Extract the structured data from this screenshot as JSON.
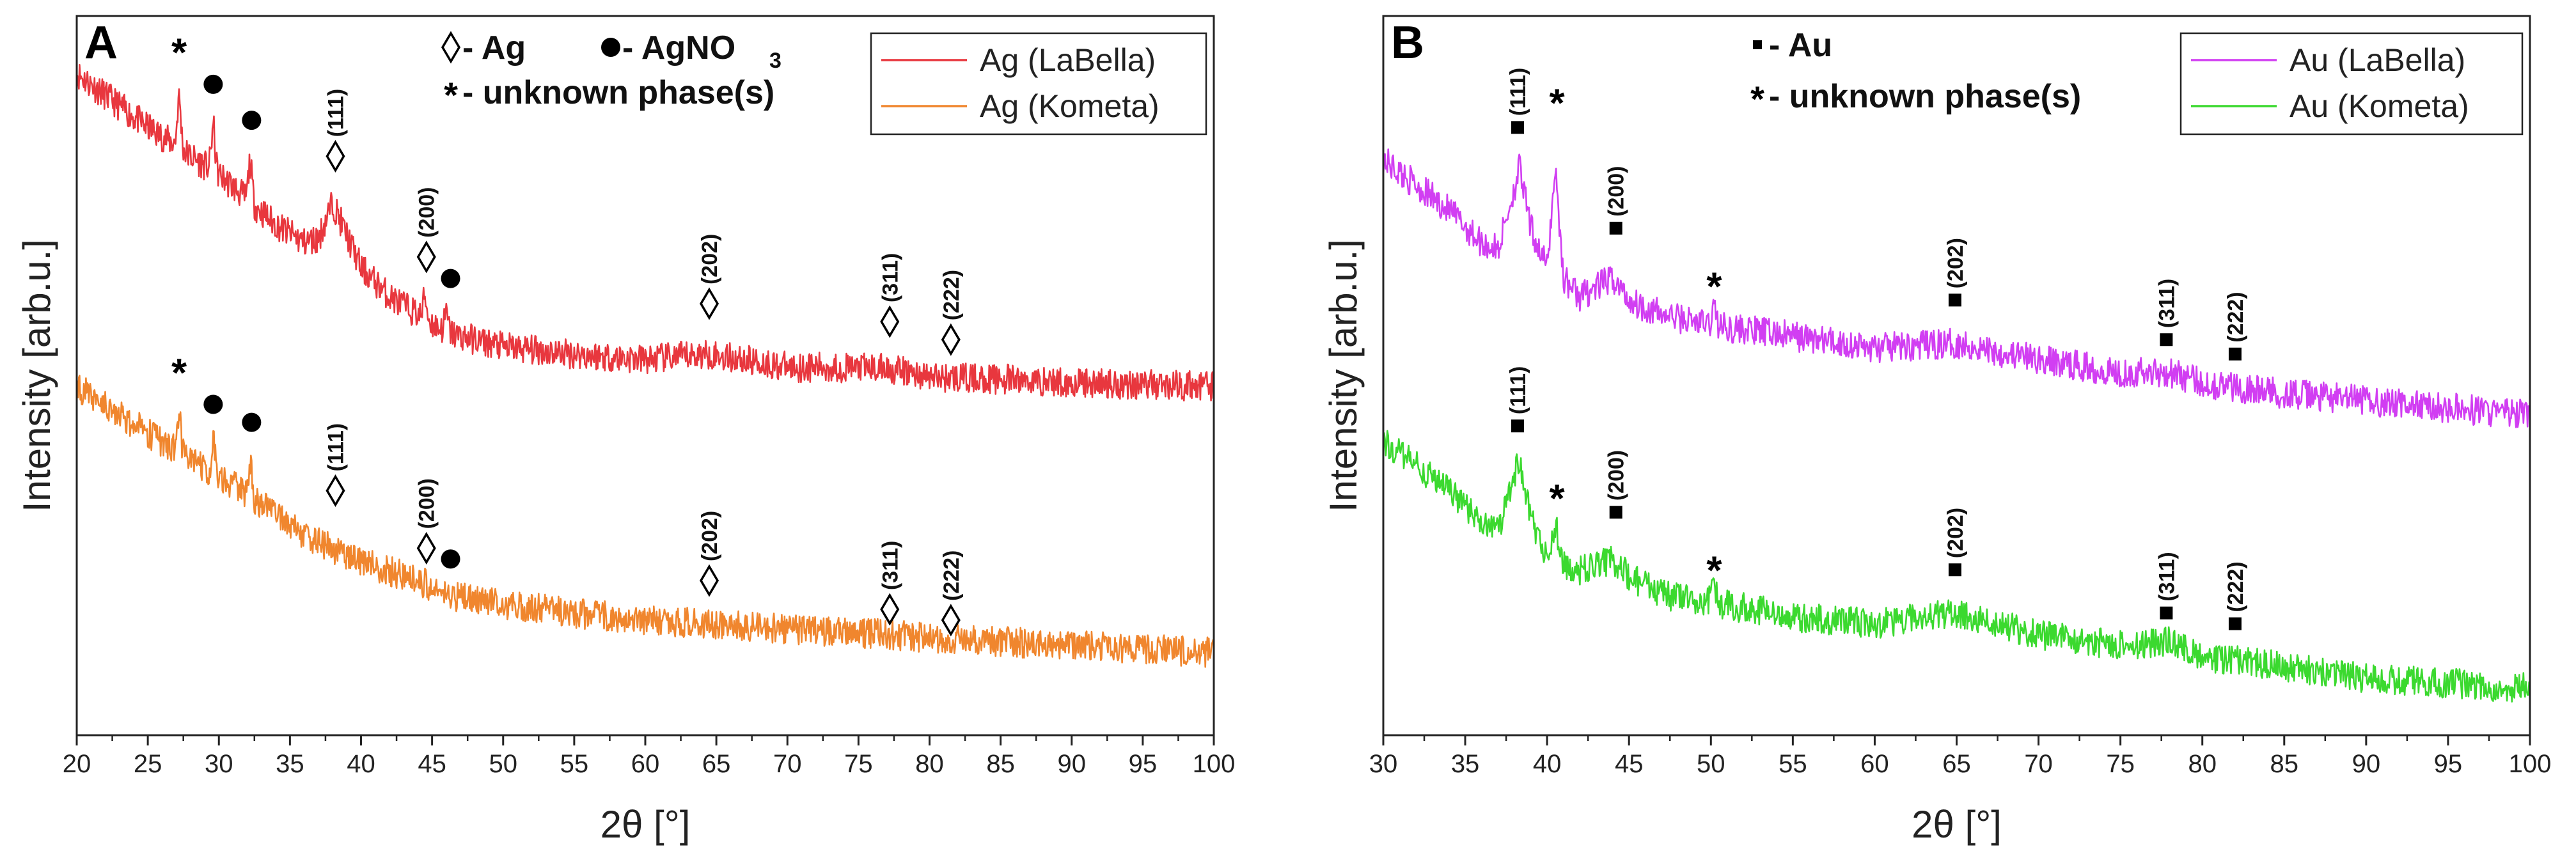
{
  "chart_data": [
    {
      "type": "line",
      "panel_letter": "A",
      "xlabel": "2θ [°]",
      "ylabel": "Intensity [arb.u.]",
      "xlim": [
        20,
        100
      ],
      "xticks": [
        20,
        25,
        30,
        35,
        40,
        45,
        50,
        55,
        60,
        65,
        70,
        75,
        80,
        85,
        90,
        95,
        100
      ],
      "ylim": [
        0,
        10
      ],
      "grid": false,
      "legend_position": "top-right",
      "series": [
        {
          "name": "Ag (LaBella)",
          "color": "#e8373e",
          "x": [
            20,
            22,
            25,
            27,
            28,
            30,
            32,
            34,
            36,
            37,
            38,
            39,
            40,
            42,
            44,
            46,
            50,
            55,
            60,
            64.5,
            70,
            77,
            80,
            85,
            90,
            95,
            100
          ],
          "y": [
            9.2,
            8.9,
            8.45,
            8.2,
            8.05,
            7.8,
            7.45,
            7.1,
            6.85,
            6.9,
            7.4,
            6.95,
            6.5,
            6.1,
            5.85,
            5.6,
            5.4,
            5.3,
            5.22,
            5.3,
            5.12,
            5.1,
            4.98,
            4.95,
            4.9,
            4.88,
            4.85
          ],
          "peaks": [
            {
              "x": 27.2,
              "y": 8.85
            },
            {
              "x": 29.6,
              "y": 8.45
            },
            {
              "x": 32.2,
              "y": 7.95
            },
            {
              "x": 44.5,
              "y": 6.1
            },
            {
              "x": 46.0,
              "y": 5.85
            }
          ]
        },
        {
          "name": "Ag (Kometa)",
          "color": "#f0862e",
          "x": [
            20,
            22,
            25,
            27,
            28,
            30,
            32,
            34,
            36,
            38,
            39,
            40,
            42,
            44,
            46,
            50,
            55,
            60,
            64.5,
            70,
            77,
            80,
            85,
            90,
            95,
            100
          ],
          "y": [
            4.85,
            4.6,
            4.2,
            3.95,
            3.8,
            3.6,
            3.35,
            3.05,
            2.8,
            2.6,
            2.5,
            2.42,
            2.28,
            2.16,
            1.95,
            1.82,
            1.7,
            1.6,
            1.55,
            1.48,
            1.4,
            1.35,
            1.3,
            1.25,
            1.2,
            1.15
          ],
          "peaks": [
            {
              "x": 27.2,
              "y": 4.45
            },
            {
              "x": 29.6,
              "y": 4.1
            },
            {
              "x": 32.2,
              "y": 3.75
            }
          ]
        }
      ],
      "markers": [
        {
          "symbol": "star",
          "x": 27.2,
          "y": 9.55
        },
        {
          "symbol": "circle",
          "x": 29.6,
          "y": 9.05
        },
        {
          "symbol": "circle",
          "x": 32.3,
          "y": 8.55
        },
        {
          "symbol": "diamond",
          "x": 38.2,
          "y": 8.05,
          "label": "(111)"
        },
        {
          "symbol": "diamond",
          "x": 44.6,
          "y": 6.65,
          "label": "(200)"
        },
        {
          "symbol": "circle",
          "x": 46.3,
          "y": 6.35
        },
        {
          "symbol": "diamond",
          "x": 64.5,
          "y": 6.0,
          "label": "(202)"
        },
        {
          "symbol": "diamond",
          "x": 77.2,
          "y": 5.75,
          "label": "(311)"
        },
        {
          "symbol": "diamond",
          "x": 81.5,
          "y": 5.5,
          "label": "(222)"
        },
        {
          "symbol": "star",
          "x": 27.2,
          "y": 5.1
        },
        {
          "symbol": "circle",
          "x": 29.6,
          "y": 4.6
        },
        {
          "symbol": "circle",
          "x": 32.3,
          "y": 4.35
        },
        {
          "symbol": "diamond",
          "x": 38.2,
          "y": 3.4,
          "label": "(111)"
        },
        {
          "symbol": "diamond",
          "x": 44.6,
          "y": 2.6,
          "label": "(200)"
        },
        {
          "symbol": "circle",
          "x": 46.3,
          "y": 2.45
        },
        {
          "symbol": "diamond",
          "x": 64.5,
          "y": 2.15,
          "label": "(202)"
        },
        {
          "symbol": "diamond",
          "x": 77.2,
          "y": 1.75,
          "label": "(311)"
        },
        {
          "symbol": "diamond",
          "x": 81.5,
          "y": 1.6,
          "label": "(222)"
        }
      ],
      "key": [
        {
          "symbol": "diamond",
          "text": " - Ag"
        },
        {
          "symbol": "circle",
          "text": " - AgNO",
          "subscript": "3"
        },
        {
          "symbol": "star",
          "text": " - unknown phase(s)"
        }
      ]
    },
    {
      "type": "line",
      "panel_letter": "B",
      "xlabel": "2θ [°]",
      "ylabel": "Intensity [arb.u.]",
      "xlim": [
        30,
        100
      ],
      "xticks": [
        30,
        35,
        40,
        45,
        50,
        55,
        60,
        65,
        70,
        75,
        80,
        85,
        90,
        95,
        100
      ],
      "ylim": [
        0,
        10
      ],
      "grid": false,
      "legend_position": "top-right",
      "series": [
        {
          "name": "Au (LaBella)",
          "color": "#d13ef2",
          "x": [
            30,
            32,
            34,
            36,
            37,
            38,
            38.3,
            39,
            40,
            40.5,
            41,
            42,
            44,
            45,
            47,
            50,
            55,
            60,
            65,
            70,
            75,
            78,
            80,
            85,
            90,
            95,
            100
          ],
          "y": [
            8.0,
            7.65,
            7.3,
            6.85,
            6.75,
            7.6,
            7.9,
            7.05,
            6.5,
            7.9,
            6.35,
            6.1,
            6.35,
            6.05,
            5.85,
            5.7,
            5.55,
            5.38,
            5.45,
            5.22,
            5.05,
            5.05,
            4.9,
            4.75,
            4.65,
            4.55,
            4.45
          ],
          "peaks": [
            {
              "x": 50.2,
              "y": 5.95
            }
          ]
        },
        {
          "name": "Au (Kometa)",
          "color": "#3bd92f",
          "x": [
            30,
            32,
            34,
            36,
            37,
            38,
            38.3,
            39,
            40,
            40.5,
            41,
            42,
            44,
            45,
            47,
            50,
            55,
            60,
            65,
            70,
            75,
            78,
            80,
            85,
            90,
            95,
            100
          ],
          "y": [
            4.1,
            3.75,
            3.4,
            2.95,
            2.85,
            3.6,
            3.8,
            3.0,
            2.45,
            2.95,
            2.35,
            2.3,
            2.45,
            2.2,
            1.95,
            1.85,
            1.65,
            1.55,
            1.7,
            1.4,
            1.25,
            1.3,
            1.1,
            0.95,
            0.8,
            0.72,
            0.65
          ],
          "peaks": [
            {
              "x": 50.2,
              "y": 2.05
            }
          ]
        }
      ],
      "markers": [
        {
          "symbol": "square",
          "x": 38.2,
          "y": 8.45,
          "label": "(111)"
        },
        {
          "symbol": "star",
          "x": 40.6,
          "y": 8.85
        },
        {
          "symbol": "square",
          "x": 44.2,
          "y": 7.05,
          "label": "(200)"
        },
        {
          "symbol": "star",
          "x": 50.2,
          "y": 6.3
        },
        {
          "symbol": "square",
          "x": 64.9,
          "y": 6.05,
          "label": "(202)"
        },
        {
          "symbol": "square",
          "x": 77.8,
          "y": 5.5,
          "label": "(311)"
        },
        {
          "symbol": "square",
          "x": 82.0,
          "y": 5.3,
          "label": "(222)"
        },
        {
          "symbol": "square",
          "x": 38.2,
          "y": 4.3,
          "label": "(111)"
        },
        {
          "symbol": "star",
          "x": 40.6,
          "y": 3.35
        },
        {
          "symbol": "square",
          "x": 44.2,
          "y": 3.1,
          "label": "(200)"
        },
        {
          "symbol": "star",
          "x": 50.2,
          "y": 2.35
        },
        {
          "symbol": "square",
          "x": 64.9,
          "y": 2.3,
          "label": "(202)"
        },
        {
          "symbol": "square",
          "x": 77.8,
          "y": 1.7,
          "label": "(311)"
        },
        {
          "symbol": "square",
          "x": 82.0,
          "y": 1.55,
          "label": "(222)"
        }
      ],
      "key": [
        {
          "symbol": "square",
          "text": " - Au"
        },
        {
          "symbol": "star",
          "text": " - unknown phase(s)"
        }
      ]
    }
  ]
}
